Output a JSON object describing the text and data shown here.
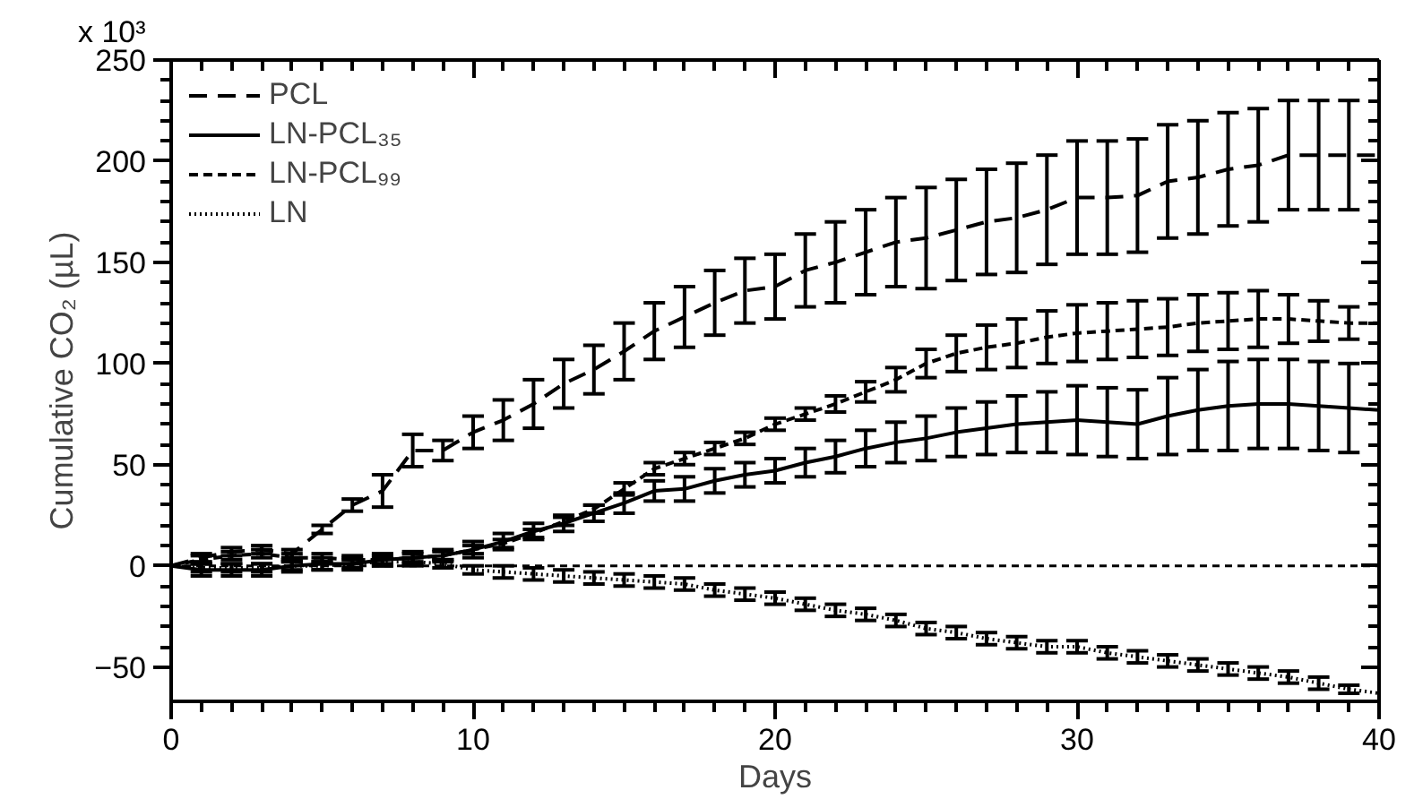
{
  "chart_data": {
    "type": "line",
    "xlabel": "Days",
    "ylabel": "Cumulative CO₂ (µL)",
    "x": [
      0,
      1,
      2,
      3,
      4,
      5,
      6,
      7,
      8,
      9,
      10,
      11,
      12,
      13,
      14,
      15,
      16,
      17,
      18,
      19,
      20,
      21,
      22,
      23,
      24,
      25,
      26,
      27,
      28,
      29,
      30,
      31,
      32,
      33,
      34,
      35,
      36,
      37,
      38,
      39,
      40
    ],
    "series": [
      {
        "name": "PCL",
        "color": "#000000",
        "line_style": "dashed",
        "values": [
          0,
          4,
          7,
          8,
          6,
          18,
          30,
          37,
          57,
          57,
          66,
          72,
          80,
          90,
          97,
          106,
          116,
          123,
          130,
          136,
          138,
          146,
          150,
          155,
          160,
          162,
          166,
          170,
          172,
          176,
          182,
          182,
          183,
          190,
          192,
          196,
          198,
          203,
          203,
          203,
          203
        ],
        "errors": [
          null,
          2,
          2,
          2,
          2,
          2,
          3,
          8,
          8,
          5,
          8,
          10,
          12,
          12,
          12,
          14,
          14,
          15,
          16,
          16,
          16,
          18,
          20,
          21,
          22,
          25,
          25,
          26,
          27,
          27,
          28,
          28,
          28,
          28,
          28,
          28,
          28,
          27,
          27,
          27,
          null
        ]
      },
      {
        "name": "LN-PCL₃₅",
        "color": "#000000",
        "line_style": "solid",
        "values": [
          0,
          -2,
          -2,
          -2,
          0,
          1,
          1,
          3,
          4,
          5,
          8,
          12,
          17,
          21,
          26,
          31,
          37,
          38,
          42,
          45,
          47,
          51,
          54,
          58,
          61,
          63,
          66,
          68,
          70,
          71,
          72,
          71,
          70,
          74,
          77,
          79,
          80,
          80,
          79,
          78,
          77
        ],
        "errors": [
          null,
          3,
          3,
          3,
          3,
          3,
          3,
          3,
          3,
          3,
          4,
          4,
          4,
          4,
          4,
          5,
          5,
          6,
          6,
          6,
          6,
          7,
          8,
          9,
          10,
          11,
          12,
          13,
          14,
          15,
          17,
          17,
          17,
          19,
          20,
          22,
          22,
          22,
          22,
          22,
          null
        ]
      },
      {
        "name": "LN-PCL₉₉",
        "color": "#000000",
        "line_style": "dashed",
        "values": [
          0,
          3,
          5,
          6,
          4,
          4,
          3,
          3,
          4,
          5,
          8,
          11,
          16,
          22,
          28,
          38,
          48,
          53,
          58,
          63,
          70,
          75,
          80,
          86,
          92,
          100,
          105,
          108,
          110,
          113,
          115,
          116,
          117,
          118,
          120,
          121,
          122,
          122,
          121,
          120,
          120
        ],
        "errors": [
          null,
          2,
          2,
          2,
          2,
          2,
          2,
          2,
          2,
          2,
          2,
          2,
          2,
          2,
          2,
          3,
          3,
          3,
          3,
          3,
          3,
          3,
          4,
          5,
          6,
          7,
          9,
          11,
          12,
          13,
          14,
          14,
          14,
          14,
          14,
          14,
          14,
          12,
          10,
          8,
          null
        ]
      },
      {
        "name": "LN",
        "color": "#000000",
        "line_style": "dotted",
        "values": [
          0,
          -1,
          -1,
          -1,
          0,
          0,
          1,
          2,
          2,
          1,
          -2,
          -3,
          -4,
          -5,
          -6,
          -7,
          -8,
          -9,
          -12,
          -14,
          -16,
          -19,
          -22,
          -24,
          -27,
          -31,
          -33,
          -36,
          -38,
          -40,
          -40,
          -43,
          -45,
          -47,
          -49,
          -51,
          -53,
          -55,
          -58,
          -61,
          -63
        ],
        "errors": [
          null,
          2,
          2,
          2,
          2,
          2,
          2,
          2,
          2,
          2,
          2,
          3,
          3,
          3,
          3,
          3,
          3,
          3,
          3,
          3,
          3,
          3,
          3,
          3,
          3,
          3,
          3,
          3,
          3,
          3,
          3,
          3,
          3,
          3,
          3,
          3,
          3,
          3,
          3,
          2,
          null
        ]
      }
    ],
    "xlim": [
      0,
      40
    ],
    "xticks": [
      0,
      10,
      20,
      30,
      40
    ],
    "ylim": [
      -67,
      250
    ],
    "yticks": [
      -50,
      0,
      50,
      100,
      150,
      200,
      250
    ],
    "annotations": [
      "x 10³"
    ],
    "ref_lines": [
      {
        "axis": "y",
        "value": 0,
        "line_style": "dashed",
        "color": "#000000"
      }
    ],
    "grid": false,
    "legend": "top left",
    "marker": "none"
  }
}
